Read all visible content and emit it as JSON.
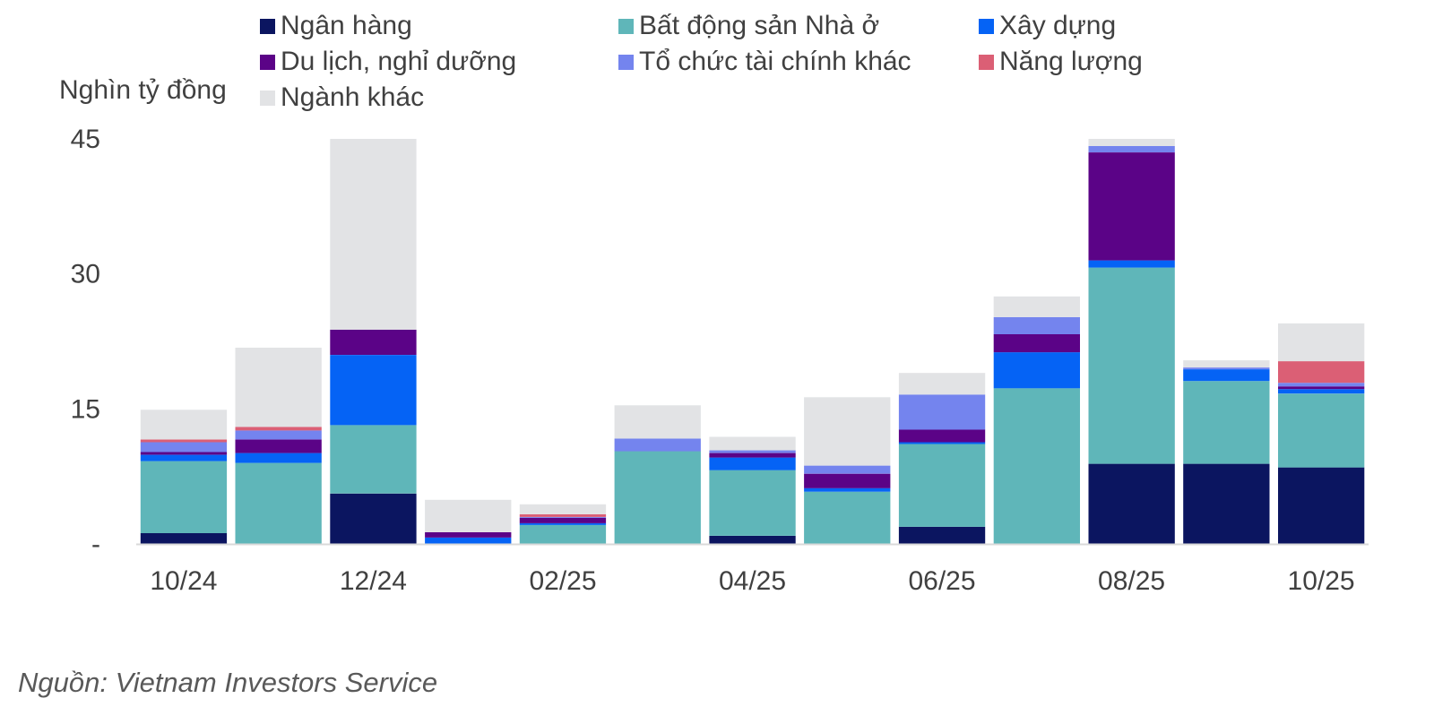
{
  "unit_label": "Nghìn tỷ đồng",
  "source": "Nguồn: Vietnam Investors Service",
  "chart_data": {
    "type": "bar",
    "stacked": true,
    "ylabel": "Nghìn tỷ đồng",
    "ylim": [
      0,
      45
    ],
    "yticks": [
      {
        "value": 0,
        "label": "-"
      },
      {
        "value": 15,
        "label": "15"
      },
      {
        "value": 30,
        "label": "30"
      },
      {
        "value": 45,
        "label": "45"
      }
    ],
    "categories": [
      "10/24",
      "11/24",
      "12/24",
      "01/25",
      "02/25",
      "03/25",
      "04/25",
      "05/25",
      "06/25",
      "07/25",
      "08/25",
      "09/25",
      "10/25"
    ],
    "x_tick_labels": [
      "10/24",
      "",
      "12/24",
      "",
      "02/25",
      "",
      "04/25",
      "",
      "06/25",
      "",
      "08/25",
      "",
      "10/25"
    ],
    "legend_position": "top",
    "series": [
      {
        "name": "Ngân hàng",
        "color": "#0b1560",
        "values": [
          1.2,
          0,
          5.6,
          0,
          0,
          0,
          0.9,
          0,
          1.9,
          0,
          8.9,
          8.9,
          8.5
        ]
      },
      {
        "name": "Bất động sản Nhà ở",
        "color": "#5fb6b9",
        "values": [
          8.0,
          9.0,
          7.6,
          0,
          2.1,
          10.3,
          7.3,
          5.8,
          9.2,
          17.3,
          21.8,
          9.2,
          8.2
        ]
      },
      {
        "name": "Xây dựng",
        "color": "#0563f5",
        "values": [
          0.7,
          1.1,
          7.8,
          0.7,
          0.2,
          0,
          1.4,
          0.4,
          0.2,
          4.0,
          0.8,
          1.3,
          0.5
        ]
      },
      {
        "name": "Du lịch, nghỉ dưỡng",
        "color": "#5b0387",
        "values": [
          0.3,
          1.5,
          2.8,
          0.6,
          0.6,
          0,
          0.5,
          1.6,
          1.4,
          2.0,
          12.0,
          0,
          0.3
        ]
      },
      {
        "name": "Tổ chức tài chính khác",
        "color": "#7484ee",
        "values": [
          1.1,
          1.0,
          0,
          0,
          0.1,
          1.4,
          0.3,
          0.9,
          3.9,
          1.9,
          0.7,
          0.2,
          0.4
        ]
      },
      {
        "name": "Năng lượng",
        "color": "#db5f75",
        "values": [
          0.3,
          0.4,
          0,
          0,
          0.3,
          0,
          0,
          0,
          0,
          0,
          0,
          0,
          2.4
        ]
      },
      {
        "name": "Ngành khác",
        "color": "#e2e3e5",
        "values": [
          3.3,
          8.8,
          21.2,
          3.6,
          1.1,
          3.7,
          1.5,
          7.6,
          2.4,
          2.3,
          0.8,
          0.8,
          4.2
        ]
      }
    ]
  }
}
